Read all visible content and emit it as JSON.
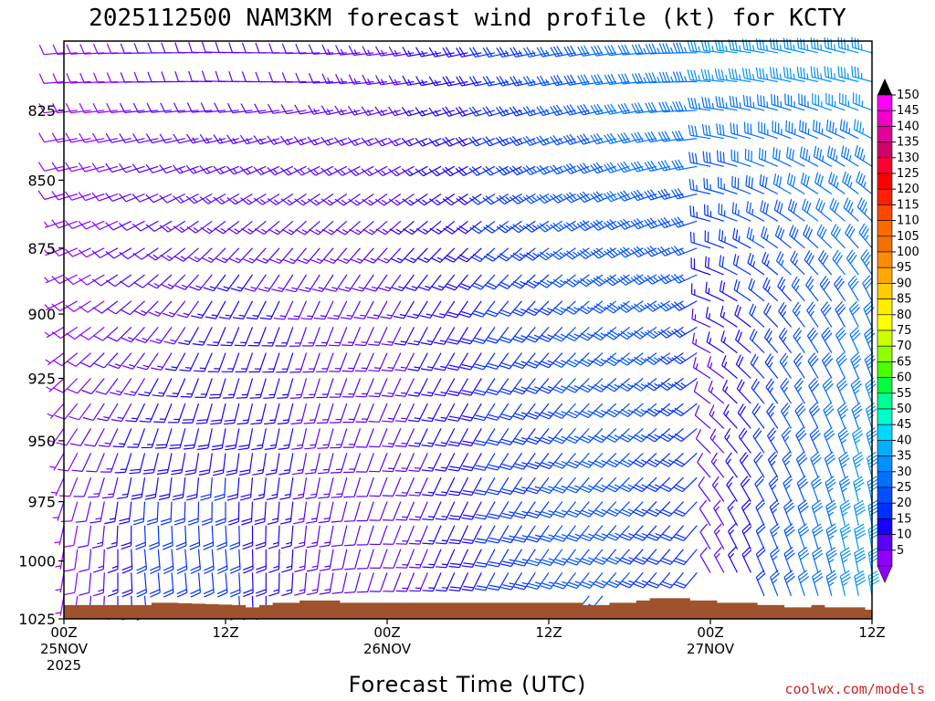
{
  "chart_data": {
    "type": "wind-barb-timeheight",
    "title": "2025112500 NAM3KM forecast wind profile (kt) for KCTY",
    "xlabel": "Forecast Time (UTC)",
    "ylabel": "",
    "units": "kt",
    "credit": "coolwx.com/models",
    "y_axis": {
      "unit": "hPa",
      "range": [
        1025,
        801
      ],
      "ticks": [
        825,
        850,
        875,
        900,
        925,
        950,
        975,
        1000,
        1025
      ],
      "levels": [
        805,
        815,
        825,
        835,
        845,
        855,
        865,
        875,
        885,
        895,
        905,
        915,
        925,
        935,
        945,
        955,
        965,
        975,
        985,
        995,
        1005,
        1015
      ]
    },
    "x_axis": {
      "unit": "forecast hour",
      "range": [
        0,
        60
      ],
      "ticks": [
        {
          "hour": 0,
          "lines": [
            "00Z",
            "25NOV",
            "2025"
          ]
        },
        {
          "hour": 12,
          "lines": [
            "12Z"
          ]
        },
        {
          "hour": 24,
          "lines": [
            "00Z",
            "26NOV"
          ]
        },
        {
          "hour": 36,
          "lines": [
            "12Z"
          ]
        },
        {
          "hour": 48,
          "lines": [
            "00Z",
            "27NOV"
          ]
        },
        {
          "hour": 60,
          "lines": [
            "12Z"
          ]
        }
      ],
      "hours": [
        0,
        1,
        2,
        3,
        4,
        5,
        6,
        7,
        8,
        9,
        10,
        11,
        12,
        13,
        14,
        15,
        16,
        17,
        18,
        19,
        20,
        21,
        22,
        23,
        24,
        25,
        26,
        27,
        28,
        29,
        30,
        31,
        32,
        33,
        34,
        35,
        36,
        37,
        38,
        39,
        40,
        41,
        42,
        43,
        44,
        45,
        46,
        47,
        48,
        49,
        50,
        51,
        52,
        53,
        54,
        55,
        56,
        57,
        58,
        59,
        60
      ]
    },
    "surface_pressure_hpa": {
      "hours": [
        0,
        6,
        7,
        8,
        13,
        14,
        15,
        16,
        17,
        18,
        19,
        20,
        21,
        24,
        30,
        36,
        37,
        38,
        39,
        40,
        41,
        42,
        43,
        44,
        45,
        46,
        47,
        48,
        49,
        50,
        51,
        52,
        53,
        54,
        55,
        56,
        57,
        58,
        59,
        60
      ],
      "values": [
        1019,
        1019,
        1018,
        1018,
        1019,
        1020,
        1019,
        1018,
        1018,
        1017,
        1017,
        1017,
        1018,
        1018,
        1018,
        1018,
        1018,
        1018,
        1019,
        1019,
        1018,
        1018,
        1017,
        1016,
        1016,
        1016,
        1017,
        1017,
        1018,
        1018,
        1018,
        1019,
        1019,
        1020,
        1020,
        1019,
        1020,
        1020,
        1020,
        1021
      ]
    },
    "wind_model": {
      "description": "Wind direction (degrees from) and speed (kt) per hour/level, piecewise linear in time at 3 height bands",
      "band_levels_hpa": [
        815,
        900,
        990
      ],
      "time_keys": [
        0,
        6,
        12,
        18,
        24,
        30,
        36,
        42,
        47,
        48,
        54,
        60
      ],
      "direction_deg": {
        "upper": [
          265,
          268,
          272,
          268,
          262,
          258,
          258,
          262,
          270,
          275,
          282,
          285
        ],
        "mid": [
          242,
          225,
          205,
          200,
          205,
          212,
          222,
          232,
          240,
          292,
          320,
          335
        ],
        "low": [
          190,
          175,
          175,
          185,
          200,
          205,
          215,
          222,
          220,
          330,
          340,
          350
        ]
      },
      "speed_kt": {
        "upper": [
          8,
          10,
          12,
          12,
          13,
          18,
          26,
          32,
          34,
          36,
          36,
          36
        ],
        "mid": [
          7,
          12,
          16,
          15,
          14,
          18,
          24,
          28,
          24,
          14,
          24,
          32
        ],
        "low": [
          6,
          22,
          22,
          14,
          10,
          18,
          25,
          26,
          20,
          10,
          28,
          40
        ]
      }
    },
    "colorbar": {
      "labels": [
        "150",
        "145",
        "140",
        "135",
        "130",
        "125",
        "120",
        "115",
        "110",
        "105",
        "100",
        "95",
        "90",
        "85",
        "80",
        "75",
        "70",
        "65",
        "60",
        "55",
        "50",
        "45",
        "40",
        "35",
        "30",
        "25",
        "20",
        "15",
        "10",
        "5"
      ],
      "colors": [
        "#ff00ff",
        "#f000c8",
        "#e0009a",
        "#d2006a",
        "#ff0030",
        "#ff0000",
        "#ff2000",
        "#ff4800",
        "#ff6a00",
        "#f07000",
        "#ff8c00",
        "#ffa800",
        "#ffcc00",
        "#ffee00",
        "#ffff00",
        "#ccff00",
        "#90ff00",
        "#4cff00",
        "#00ff40",
        "#00ff90",
        "#00ffcc",
        "#00d8ff",
        "#00b0ff",
        "#0090ff",
        "#0070ff",
        "#0050ff",
        "#0030ff",
        "#1a00ff",
        "#5c00ff",
        "#9000ff"
      ],
      "top_arrow_color": "#000000",
      "bottom_arrow_color": "#9000ff"
    },
    "ground_color": "#a0522d"
  }
}
